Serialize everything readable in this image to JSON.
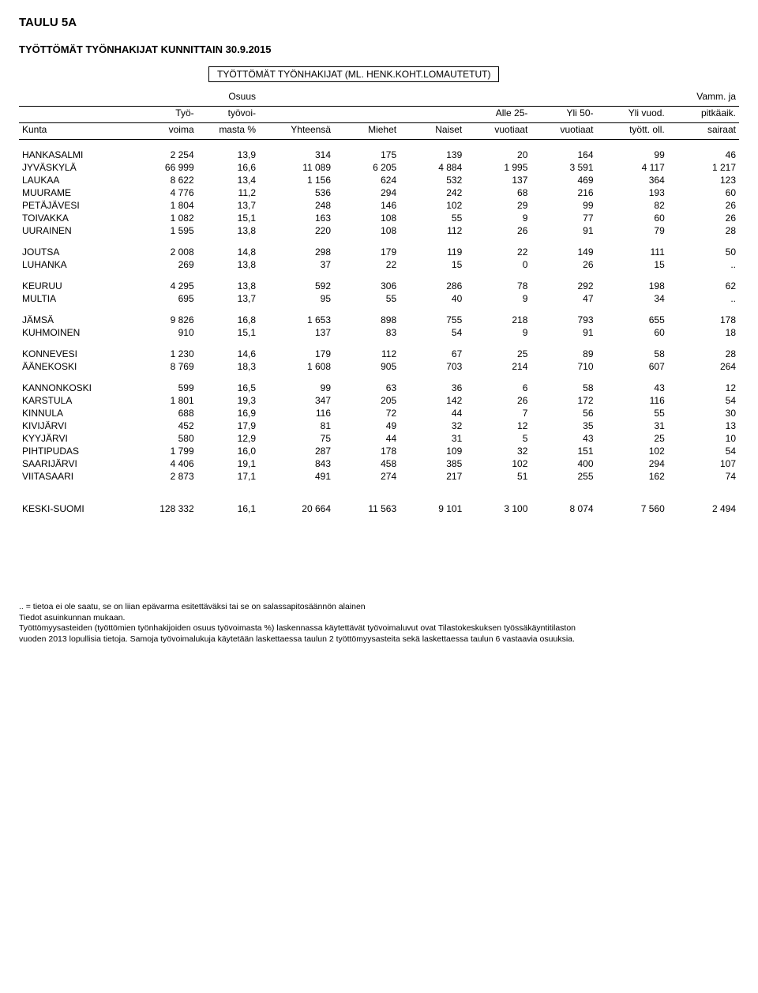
{
  "title": "TAULU 5A",
  "subtitle": "TYÖTTÖMÄT TYÖNHAKIJAT KUNNITTAIN 30.9.2015",
  "header_box": "TYÖTTÖMÄT TYÖNHAKIJAT (ML. HENK.KOHT.LOMAUTETUT)",
  "headers": {
    "line1": [
      "",
      "",
      "Osuus",
      "",
      "",
      "",
      "",
      "",
      "",
      "Vamm. ja"
    ],
    "line2": [
      "",
      "Työ-",
      "työvoi-",
      "",
      "",
      "",
      "Alle 25-",
      "Yli 50-",
      "Yli vuod.",
      "pitkäaik."
    ],
    "line3": [
      "Kunta",
      "voima",
      "masta %",
      "Yhteensä",
      "Miehet",
      "Naiset",
      "vuotiaat",
      "vuotiaat",
      "tyött. oll.",
      "sairaat"
    ]
  },
  "groups": [
    [
      [
        "HANKASALMI",
        "2 254",
        "13,9",
        "314",
        "175",
        "139",
        "20",
        "164",
        "99",
        "46"
      ],
      [
        "JYVÄSKYLÄ",
        "66 999",
        "16,6",
        "11 089",
        "6 205",
        "4 884",
        "1 995",
        "3 591",
        "4 117",
        "1 217"
      ],
      [
        "LAUKAA",
        "8 622",
        "13,4",
        "1 156",
        "624",
        "532",
        "137",
        "469",
        "364",
        "123"
      ],
      [
        "MUURAME",
        "4 776",
        "11,2",
        "536",
        "294",
        "242",
        "68",
        "216",
        "193",
        "60"
      ],
      [
        "PETÄJÄVESI",
        "1 804",
        "13,7",
        "248",
        "146",
        "102",
        "29",
        "99",
        "82",
        "26"
      ],
      [
        "TOIVAKKA",
        "1 082",
        "15,1",
        "163",
        "108",
        "55",
        "9",
        "77",
        "60",
        "26"
      ],
      [
        "UURAINEN",
        "1 595",
        "13,8",
        "220",
        "108",
        "112",
        "26",
        "91",
        "79",
        "28"
      ]
    ],
    [
      [
        "JOUTSA",
        "2 008",
        "14,8",
        "298",
        "179",
        "119",
        "22",
        "149",
        "111",
        "50"
      ],
      [
        "LUHANKA",
        "269",
        "13,8",
        "37",
        "22",
        "15",
        "0",
        "26",
        "15",
        ".."
      ]
    ],
    [
      [
        "KEURUU",
        "4 295",
        "13,8",
        "592",
        "306",
        "286",
        "78",
        "292",
        "198",
        "62"
      ],
      [
        "MULTIA",
        "695",
        "13,7",
        "95",
        "55",
        "40",
        "9",
        "47",
        "34",
        ".."
      ]
    ],
    [
      [
        "JÄMSÄ",
        "9 826",
        "16,8",
        "1 653",
        "898",
        "755",
        "218",
        "793",
        "655",
        "178"
      ],
      [
        "KUHMOINEN",
        "910",
        "15,1",
        "137",
        "83",
        "54",
        "9",
        "91",
        "60",
        "18"
      ]
    ],
    [
      [
        "KONNEVESI",
        "1 230",
        "14,6",
        "179",
        "112",
        "67",
        "25",
        "89",
        "58",
        "28"
      ],
      [
        "ÄÄNEKOSKI",
        "8 769",
        "18,3",
        "1 608",
        "905",
        "703",
        "214",
        "710",
        "607",
        "264"
      ]
    ],
    [
      [
        "KANNONKOSKI",
        "599",
        "16,5",
        "99",
        "63",
        "36",
        "6",
        "58",
        "43",
        "12"
      ],
      [
        "KARSTULA",
        "1 801",
        "19,3",
        "347",
        "205",
        "142",
        "26",
        "172",
        "116",
        "54"
      ],
      [
        "KINNULA",
        "688",
        "16,9",
        "116",
        "72",
        "44",
        "7",
        "56",
        "55",
        "30"
      ],
      [
        "KIVIJÄRVI",
        "452",
        "17,9",
        "81",
        "49",
        "32",
        "12",
        "35",
        "31",
        "13"
      ],
      [
        "KYYJÄRVI",
        "580",
        "12,9",
        "75",
        "44",
        "31",
        "5",
        "43",
        "25",
        "10"
      ],
      [
        "PIHTIPUDAS",
        "1 799",
        "16,0",
        "287",
        "178",
        "109",
        "32",
        "151",
        "102",
        "54"
      ],
      [
        "SAARIJÄRVI",
        "4 406",
        "19,1",
        "843",
        "458",
        "385",
        "102",
        "400",
        "294",
        "107"
      ],
      [
        "VIITASAARI",
        "2 873",
        "17,1",
        "491",
        "274",
        "217",
        "51",
        "255",
        "162",
        "74"
      ]
    ]
  ],
  "total": [
    "KESKI-SUOMI",
    "128 332",
    "16,1",
    "20 664",
    "11 563",
    "9 101",
    "3 100",
    "8 074",
    "7 560",
    "2 494"
  ],
  "footnotes": [
    ".. = tietoa ei ole saatu, se on liian epävarma esitettäväksi tai se on salassapitosäännön alainen",
    "Tiedot asuinkunnan mukaan.",
    "Työttömyysasteiden (työttömien työnhakijoiden osuus työvoimasta %) laskennassa käytettävät työvoimaluvut ovat Tilastokeskuksen työssäkäyntitilaston",
    "vuoden 2013 lopullisia tietoja. Samoja työvoimalukuja käytetään laskettaessa taulun 2 työttömyysasteita sekä laskettaessa taulun 6 vastaavia osuuksia."
  ],
  "col_widths": [
    "120px",
    "70px",
    "66px",
    "80px",
    "70px",
    "70px",
    "70px",
    "70px",
    "76px",
    "76px"
  ]
}
